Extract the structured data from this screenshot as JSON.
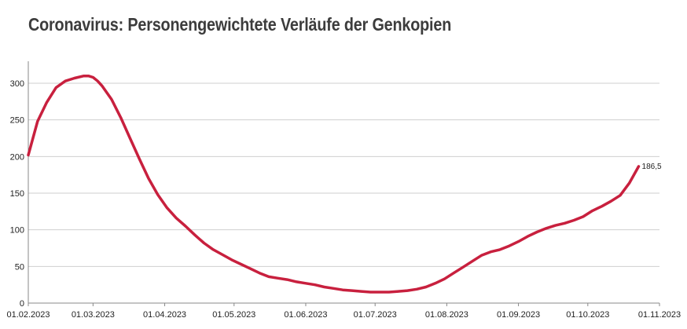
{
  "chart_data": {
    "type": "line",
    "title": "Coronavirus: Personengewichtete Verläufe der Genkopien",
    "xlabel": "",
    "ylabel": "",
    "ylim": [
      0,
      330
    ],
    "yticks": [
      "0",
      "50",
      "100",
      "150",
      "200",
      "250",
      "300"
    ],
    "xlim": [
      "2023-02-01",
      "2023-11-01"
    ],
    "xticks": [
      "01.02.2023",
      "01.03.2023",
      "01.04.2023",
      "01.05.2023",
      "01.06.2023",
      "01.07.2023",
      "01.08.2023",
      "01.09.2023",
      "01.10.2023",
      "01.11.2023"
    ],
    "grid": true,
    "line_color": "#c8203e",
    "end_label": "186,5",
    "series": [
      {
        "x": [
          "2023-02-01",
          "2023-02-05",
          "2023-02-09",
          "2023-02-13",
          "2023-02-17",
          "2023-02-21",
          "2023-02-25",
          "2023-02-27",
          "2023-03-01",
          "2023-03-03",
          "2023-03-05",
          "2023-03-09",
          "2023-03-13",
          "2023-03-17",
          "2023-03-21",
          "2023-03-25",
          "2023-03-29",
          "2023-04-02",
          "2023-04-06",
          "2023-04-10",
          "2023-04-14",
          "2023-04-18",
          "2023-04-22",
          "2023-04-26",
          "2023-04-30",
          "2023-05-04",
          "2023-05-08",
          "2023-05-12",
          "2023-05-16",
          "2023-05-20",
          "2023-05-24",
          "2023-05-28",
          "2023-06-01",
          "2023-06-05",
          "2023-06-09",
          "2023-06-13",
          "2023-06-17",
          "2023-06-21",
          "2023-06-25",
          "2023-06-29",
          "2023-07-03",
          "2023-07-07",
          "2023-07-11",
          "2023-07-15",
          "2023-07-19",
          "2023-07-23",
          "2023-07-27",
          "2023-07-31",
          "2023-08-04",
          "2023-08-08",
          "2023-08-12",
          "2023-08-16",
          "2023-08-20",
          "2023-08-24",
          "2023-08-28",
          "2023-09-01",
          "2023-09-05",
          "2023-09-09",
          "2023-09-13",
          "2023-09-17",
          "2023-09-21",
          "2023-09-25",
          "2023-09-29",
          "2023-10-03",
          "2023-10-07",
          "2023-10-11",
          "2023-10-15",
          "2023-10-19",
          "2023-10-23"
        ],
        "y": [
          202,
          248,
          274,
          294,
          303,
          307,
          310,
          310,
          308,
          303,
          296,
          278,
          253,
          225,
          197,
          170,
          148,
          130,
          116,
          105,
          93,
          82,
          73,
          66,
          59,
          53,
          47,
          41,
          36,
          34,
          32,
          29,
          27,
          25,
          22,
          20,
          18,
          17,
          16,
          15,
          15,
          15,
          16,
          17,
          19,
          22,
          27,
          33,
          41,
          49,
          57,
          65,
          70,
          73,
          78,
          84,
          91,
          97,
          102,
          106,
          109,
          113,
          118,
          126,
          132,
          139,
          147,
          164,
          186.5
        ]
      }
    ]
  }
}
